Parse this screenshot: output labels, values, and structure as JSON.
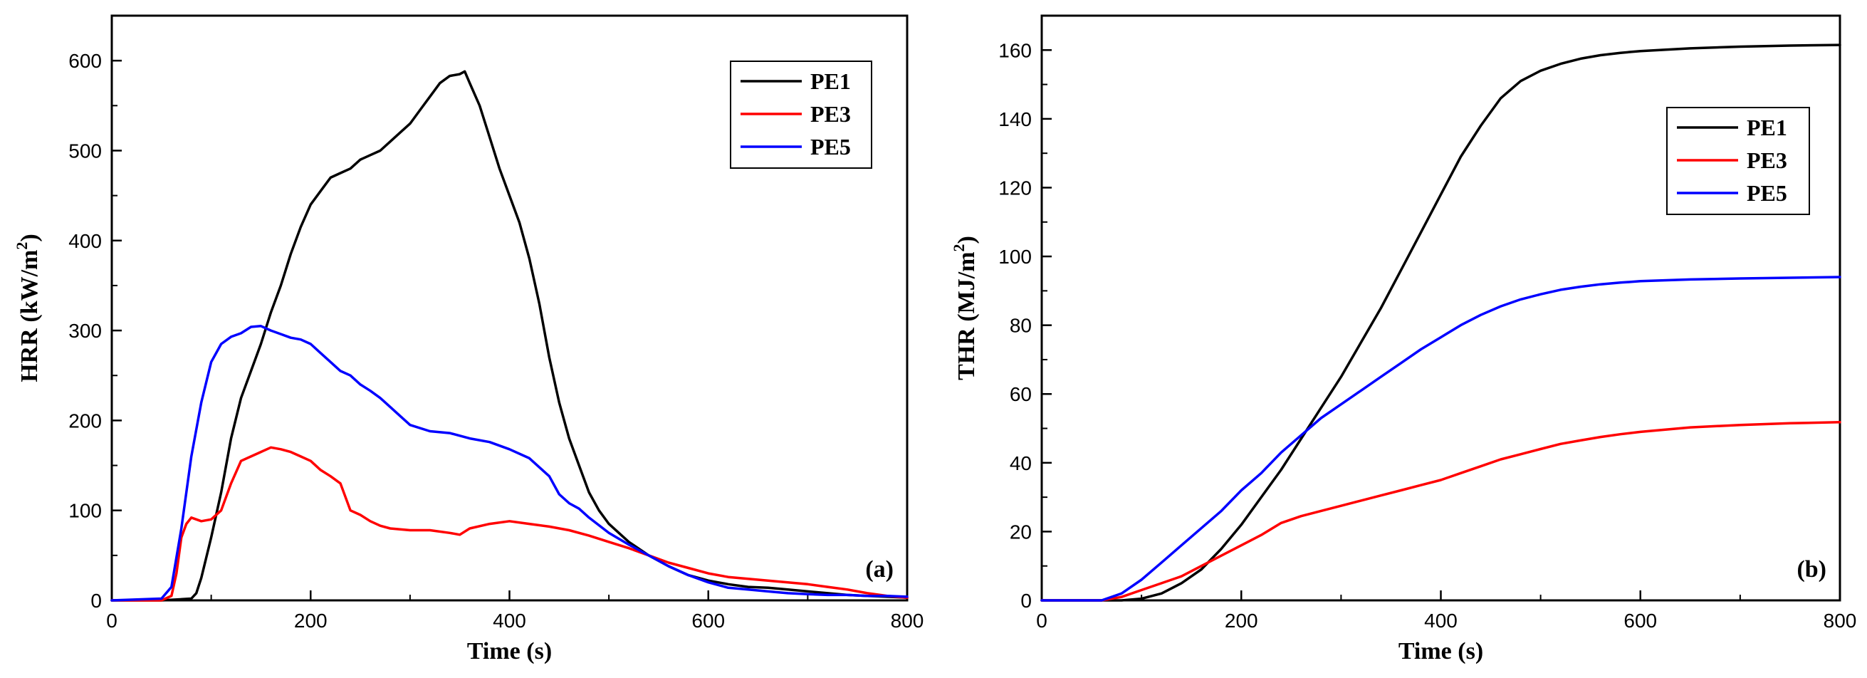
{
  "chart_data": [
    {
      "type": "line",
      "panel_label": "(a)",
      "xlabel": "Time (s)",
      "ylabel_main": "HRR (kW/m",
      "ylabel_sup": "2",
      "ylabel_end": ")",
      "xlim": [
        0,
        800
      ],
      "ylim": [
        0,
        650
      ],
      "xticks": [
        0,
        200,
        400,
        600,
        800
      ],
      "yticks": [
        0,
        100,
        200,
        300,
        400,
        500,
        600
      ],
      "legend_position": "top-right",
      "colors": {
        "PE1": "#000000",
        "PE3": "#ff0000",
        "PE5": "#0000ff"
      },
      "series": [
        {
          "name": "PE1",
          "x": [
            0,
            50,
            80,
            85,
            90,
            100,
            110,
            120,
            130,
            140,
            150,
            160,
            170,
            180,
            190,
            200,
            210,
            220,
            230,
            240,
            250,
            260,
            270,
            280,
            290,
            300,
            310,
            320,
            330,
            340,
            350,
            355,
            360,
            370,
            380,
            390,
            400,
            410,
            420,
            430,
            440,
            450,
            460,
            470,
            480,
            490,
            500,
            520,
            540,
            560,
            580,
            600,
            620,
            640,
            660,
            680,
            700,
            720,
            740,
            760,
            780,
            800
          ],
          "y": [
            0,
            0,
            2,
            8,
            25,
            70,
            120,
            180,
            225,
            255,
            285,
            320,
            350,
            385,
            415,
            440,
            455,
            470,
            475,
            480,
            490,
            495,
            500,
            510,
            520,
            530,
            545,
            560,
            575,
            583,
            585,
            588,
            575,
            550,
            515,
            480,
            450,
            420,
            380,
            330,
            270,
            220,
            180,
            150,
            120,
            100,
            85,
            65,
            50,
            38,
            28,
            22,
            18,
            15,
            14,
            12,
            10,
            8,
            6,
            5,
            4,
            3
          ]
        },
        {
          "name": "PE3",
          "x": [
            0,
            50,
            60,
            65,
            70,
            75,
            80,
            85,
            90,
            100,
            110,
            120,
            130,
            140,
            150,
            160,
            170,
            180,
            190,
            200,
            210,
            220,
            230,
            240,
            250,
            260,
            270,
            280,
            300,
            320,
            340,
            350,
            360,
            380,
            400,
            420,
            440,
            460,
            480,
            500,
            520,
            540,
            560,
            580,
            600,
            620,
            640,
            660,
            680,
            700,
            720,
            740,
            760,
            780,
            800
          ],
          "y": [
            0,
            0,
            5,
            30,
            70,
            85,
            92,
            90,
            88,
            90,
            100,
            130,
            155,
            160,
            165,
            170,
            168,
            165,
            160,
            155,
            145,
            138,
            130,
            100,
            95,
            88,
            83,
            80,
            78,
            78,
            75,
            73,
            80,
            85,
            88,
            85,
            82,
            78,
            72,
            65,
            58,
            50,
            42,
            36,
            30,
            26,
            24,
            22,
            20,
            18,
            15,
            12,
            8,
            5,
            3
          ]
        },
        {
          "name": "PE5",
          "x": [
            0,
            50,
            60,
            70,
            80,
            90,
            100,
            110,
            120,
            130,
            140,
            150,
            160,
            170,
            180,
            190,
            200,
            210,
            220,
            230,
            240,
            250,
            260,
            270,
            280,
            290,
            300,
            320,
            340,
            360,
            380,
            400,
            420,
            440,
            450,
            460,
            470,
            480,
            500,
            520,
            540,
            560,
            580,
            600,
            620,
            640,
            660,
            680,
            700,
            720,
            740,
            760,
            780,
            800
          ],
          "y": [
            0,
            2,
            15,
            80,
            160,
            220,
            265,
            285,
            293,
            297,
            304,
            305,
            300,
            296,
            292,
            290,
            285,
            275,
            265,
            255,
            250,
            240,
            233,
            225,
            215,
            205,
            195,
            188,
            186,
            180,
            176,
            168,
            158,
            138,
            118,
            108,
            102,
            92,
            75,
            62,
            50,
            38,
            28,
            20,
            14,
            12,
            10,
            8,
            7,
            6,
            6,
            5,
            5,
            4
          ]
        }
      ]
    },
    {
      "type": "line",
      "panel_label": "(b)",
      "xlabel": "Time (s)",
      "ylabel_main": "THR (MJ/m",
      "ylabel_sup": "2",
      "ylabel_end": ")",
      "xlim": [
        0,
        800
      ],
      "ylim": [
        0,
        170
      ],
      "xticks": [
        0,
        200,
        400,
        600,
        800
      ],
      "yticks": [
        0,
        20,
        40,
        60,
        80,
        100,
        120,
        140,
        160
      ],
      "legend_position": "top-right",
      "colors": {
        "PE1": "#000000",
        "PE3": "#ff0000",
        "PE5": "#0000ff"
      },
      "series": [
        {
          "name": "PE1",
          "x": [
            0,
            80,
            100,
            120,
            140,
            160,
            180,
            200,
            220,
            240,
            260,
            280,
            300,
            320,
            340,
            360,
            380,
            400,
            420,
            440,
            460,
            480,
            500,
            520,
            540,
            560,
            580,
            600,
            650,
            700,
            750,
            800
          ],
          "y": [
            0,
            0,
            0.5,
            2,
            5,
            9,
            15,
            22,
            30,
            38,
            47,
            56,
            65,
            75,
            85,
            96,
            107,
            118,
            129,
            138,
            146,
            151,
            154,
            156,
            157.5,
            158.5,
            159.2,
            159.7,
            160.5,
            161,
            161.3,
            161.5
          ]
        },
        {
          "name": "PE3",
          "x": [
            0,
            60,
            80,
            100,
            120,
            140,
            160,
            180,
            200,
            220,
            240,
            260,
            280,
            300,
            320,
            340,
            360,
            380,
            400,
            420,
            440,
            460,
            480,
            500,
            520,
            540,
            560,
            580,
            600,
            650,
            700,
            750,
            800
          ],
          "y": [
            0,
            0,
            1,
            3,
            5,
            7,
            10,
            13,
            16,
            19,
            22.5,
            24.5,
            26,
            27.5,
            29,
            30.5,
            32,
            33.5,
            35,
            37,
            39,
            41,
            42.5,
            44,
            45.5,
            46.5,
            47.5,
            48.3,
            49,
            50.3,
            51,
            51.5,
            51.8
          ]
        },
        {
          "name": "PE5",
          "x": [
            0,
            60,
            80,
            100,
            120,
            140,
            160,
            180,
            200,
            220,
            240,
            260,
            280,
            300,
            320,
            340,
            360,
            380,
            400,
            420,
            440,
            460,
            480,
            500,
            520,
            540,
            560,
            580,
            600,
            650,
            700,
            750,
            800
          ],
          "y": [
            0,
            0,
            2,
            6,
            11,
            16,
            21,
            26,
            32,
            37,
            43,
            48,
            53,
            57,
            61,
            65,
            69,
            73,
            76.5,
            80,
            83,
            85.5,
            87.5,
            89,
            90.3,
            91.2,
            91.9,
            92.4,
            92.8,
            93.3,
            93.6,
            93.8,
            94
          ]
        }
      ]
    }
  ]
}
